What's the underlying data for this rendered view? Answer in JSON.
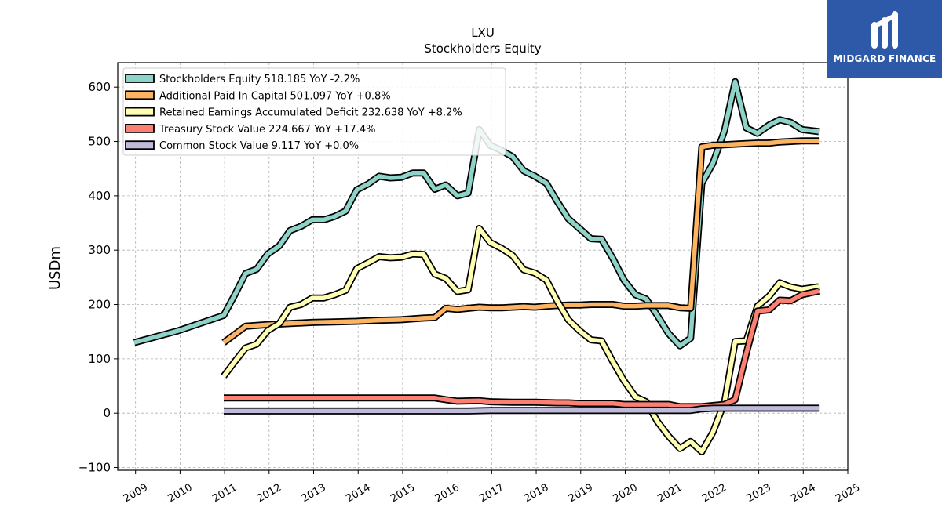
{
  "brand": {
    "name": "MIDGARD FINANCE",
    "color": "#2e59a8"
  },
  "chart_data": {
    "type": "line",
    "title": "LXU",
    "subtitle": "Stockholders  Equity",
    "ylabel": "USDm",
    "xlabel": "",
    "xlim": [
      2008.6,
      2025.0
    ],
    "ylim": [
      -105,
      645
    ],
    "x_ticks": [
      "2009",
      "2010",
      "2011",
      "2012",
      "2013",
      "2014",
      "2015",
      "2016",
      "2017",
      "2018",
      "2019",
      "2020",
      "2021",
      "2022",
      "2023",
      "2024",
      "2025"
    ],
    "y_ticks": [
      -100,
      0,
      100,
      200,
      300,
      400,
      500,
      600
    ],
    "y_tick_labels": [
      "−100",
      "0",
      "100",
      "200",
      "300",
      "400",
      "500",
      "600"
    ],
    "grid": true,
    "legend_position": "top-left",
    "series": [
      {
        "name": "Stockholders Equity",
        "legend": "Stockholders Equity  518.185 YoY -2.2%",
        "color": "#8dd3c7",
        "points": [
          [
            2008.97,
            130
          ],
          [
            2009.97,
            152
          ],
          [
            2010.98,
            180
          ],
          [
            2011.23,
            218
          ],
          [
            2011.47,
            257
          ],
          [
            2011.72,
            265
          ],
          [
            2011.97,
            293
          ],
          [
            2012.23,
            308
          ],
          [
            2012.47,
            336
          ],
          [
            2012.72,
            344
          ],
          [
            2012.97,
            356
          ],
          [
            2013.23,
            356
          ],
          [
            2013.47,
            362
          ],
          [
            2013.72,
            372
          ],
          [
            2013.97,
            411
          ],
          [
            2014.23,
            422
          ],
          [
            2014.47,
            436
          ],
          [
            2014.72,
            433
          ],
          [
            2014.97,
            434
          ],
          [
            2015.23,
            442
          ],
          [
            2015.47,
            442
          ],
          [
            2015.72,
            412
          ],
          [
            2015.97,
            420
          ],
          [
            2016.23,
            400
          ],
          [
            2016.47,
            405
          ],
          [
            2016.72,
            522
          ],
          [
            2016.97,
            493
          ],
          [
            2017.23,
            483
          ],
          [
            2017.47,
            472
          ],
          [
            2017.72,
            446
          ],
          [
            2017.97,
            436
          ],
          [
            2018.23,
            423
          ],
          [
            2018.47,
            390
          ],
          [
            2018.72,
            358
          ],
          [
            2018.97,
            340
          ],
          [
            2019.23,
            321
          ],
          [
            2019.47,
            320
          ],
          [
            2019.72,
            285
          ],
          [
            2019.97,
            245
          ],
          [
            2020.23,
            218
          ],
          [
            2020.47,
            210
          ],
          [
            2020.72,
            180
          ],
          [
            2020.97,
            147
          ],
          [
            2021.23,
            124
          ],
          [
            2021.47,
            138
          ],
          [
            2021.72,
            423
          ],
          [
            2021.97,
            460
          ],
          [
            2022.23,
            520
          ],
          [
            2022.47,
            610
          ],
          [
            2022.72,
            525
          ],
          [
            2022.97,
            515
          ],
          [
            2023.23,
            530
          ],
          [
            2023.47,
            540
          ],
          [
            2023.72,
            535
          ],
          [
            2023.97,
            522
          ],
          [
            2024.35,
            518.185
          ]
        ]
      },
      {
        "name": "Additional Paid In Capital",
        "legend": "Additional Paid In Capital  501.097 YoY +0.8%",
        "color": "#fdb462",
        "points": [
          [
            2010.98,
            130
          ],
          [
            2011.47,
            160
          ],
          [
            2011.97,
            163
          ],
          [
            2012.47,
            165
          ],
          [
            2012.97,
            167
          ],
          [
            2013.47,
            168
          ],
          [
            2013.97,
            169
          ],
          [
            2014.47,
            171
          ],
          [
            2014.97,
            172
          ],
          [
            2015.47,
            175
          ],
          [
            2015.72,
            176
          ],
          [
            2015.97,
            193
          ],
          [
            2016.23,
            191
          ],
          [
            2016.47,
            193
          ],
          [
            2016.72,
            195
          ],
          [
            2016.97,
            194
          ],
          [
            2017.23,
            194
          ],
          [
            2017.47,
            195
          ],
          [
            2017.72,
            196
          ],
          [
            2017.97,
            195
          ],
          [
            2018.23,
            197
          ],
          [
            2018.47,
            198
          ],
          [
            2018.72,
            199
          ],
          [
            2018.97,
            199
          ],
          [
            2019.23,
            200
          ],
          [
            2019.47,
            200
          ],
          [
            2019.72,
            200
          ],
          [
            2019.97,
            197
          ],
          [
            2020.23,
            197
          ],
          [
            2020.47,
            198
          ],
          [
            2020.72,
            198
          ],
          [
            2020.97,
            198
          ],
          [
            2021.23,
            194
          ],
          [
            2021.47,
            193
          ],
          [
            2021.72,
            490
          ],
          [
            2021.97,
            493
          ],
          [
            2022.23,
            494
          ],
          [
            2022.47,
            495
          ],
          [
            2022.72,
            496
          ],
          [
            2022.97,
            497
          ],
          [
            2023.23,
            497
          ],
          [
            2023.47,
            499
          ],
          [
            2023.72,
            500
          ],
          [
            2023.97,
            501
          ],
          [
            2024.35,
            501.097
          ]
        ]
      },
      {
        "name": "Retained Earnings Accumulated Deficit",
        "legend": "Retained Earnings Accumulated Deficit  232.638 YoY +8.2%",
        "color": "#ffffb3",
        "points": [
          [
            2010.98,
            68
          ],
          [
            2011.23,
            95
          ],
          [
            2011.47,
            120
          ],
          [
            2011.72,
            127
          ],
          [
            2011.97,
            152
          ],
          [
            2012.23,
            165
          ],
          [
            2012.47,
            195
          ],
          [
            2012.72,
            200
          ],
          [
            2012.97,
            212
          ],
          [
            2013.23,
            212
          ],
          [
            2013.47,
            218
          ],
          [
            2013.72,
            226
          ],
          [
            2013.97,
            266
          ],
          [
            2014.23,
            277
          ],
          [
            2014.47,
            288
          ],
          [
            2014.72,
            286
          ],
          [
            2014.97,
            287
          ],
          [
            2015.23,
            293
          ],
          [
            2015.47,
            292
          ],
          [
            2015.72,
            256
          ],
          [
            2015.97,
            248
          ],
          [
            2016.23,
            224
          ],
          [
            2016.47,
            227
          ],
          [
            2016.72,
            340
          ],
          [
            2016.97,
            314
          ],
          [
            2017.23,
            303
          ],
          [
            2017.47,
            290
          ],
          [
            2017.72,
            264
          ],
          [
            2017.97,
            258
          ],
          [
            2018.23,
            245
          ],
          [
            2018.47,
            207
          ],
          [
            2018.72,
            172
          ],
          [
            2018.97,
            152
          ],
          [
            2019.23,
            135
          ],
          [
            2019.47,
            133
          ],
          [
            2019.72,
            95
          ],
          [
            2019.97,
            60
          ],
          [
            2020.23,
            30
          ],
          [
            2020.47,
            21
          ],
          [
            2020.72,
            -15
          ],
          [
            2020.97,
            -42
          ],
          [
            2021.23,
            -65
          ],
          [
            2021.47,
            -52
          ],
          [
            2021.72,
            -71
          ],
          [
            2021.97,
            -35
          ],
          [
            2022.23,
            20
          ],
          [
            2022.47,
            132
          ],
          [
            2022.72,
            133
          ],
          [
            2022.97,
            197
          ],
          [
            2023.23,
            215
          ],
          [
            2023.47,
            240
          ],
          [
            2023.72,
            232
          ],
          [
            2023.97,
            228
          ],
          [
            2024.35,
            232.638
          ]
        ]
      },
      {
        "name": "Treasury Stock Value",
        "legend": "Treasury Stock Value  224.667 YoY +17.4%",
        "color": "#fb8072",
        "points": [
          [
            2010.98,
            28
          ],
          [
            2011.47,
            28
          ],
          [
            2012.47,
            28
          ],
          [
            2013.47,
            28
          ],
          [
            2014.47,
            28
          ],
          [
            2015.47,
            28
          ],
          [
            2015.72,
            28
          ],
          [
            2015.97,
            25
          ],
          [
            2016.23,
            22
          ],
          [
            2016.72,
            23
          ],
          [
            2016.97,
            21
          ],
          [
            2017.47,
            20
          ],
          [
            2017.97,
            20
          ],
          [
            2018.47,
            19
          ],
          [
            2018.72,
            19
          ],
          [
            2018.97,
            18
          ],
          [
            2019.47,
            18
          ],
          [
            2019.72,
            18
          ],
          [
            2019.97,
            16
          ],
          [
            2020.47,
            16
          ],
          [
            2020.97,
            16
          ],
          [
            2021.23,
            12
          ],
          [
            2021.47,
            12
          ],
          [
            2021.72,
            12
          ],
          [
            2021.97,
            14
          ],
          [
            2022.23,
            16
          ],
          [
            2022.47,
            25
          ],
          [
            2022.72,
            110
          ],
          [
            2022.97,
            188
          ],
          [
            2023.23,
            190
          ],
          [
            2023.47,
            208
          ],
          [
            2023.72,
            207
          ],
          [
            2023.97,
            218
          ],
          [
            2024.35,
            224.667
          ]
        ]
      },
      {
        "name": "Common Stock Value",
        "legend": "Common Stock Value  9.117 YoY +0.0%",
        "color": "#bebada",
        "points": [
          [
            2010.98,
            4
          ],
          [
            2012.47,
            4
          ],
          [
            2013.97,
            4
          ],
          [
            2015.47,
            4
          ],
          [
            2016.47,
            4
          ],
          [
            2016.97,
            5
          ],
          [
            2018.47,
            5
          ],
          [
            2019.97,
            5
          ],
          [
            2021.47,
            5
          ],
          [
            2021.72,
            8
          ],
          [
            2021.97,
            9
          ],
          [
            2022.47,
            9.117
          ],
          [
            2023.47,
            9.117
          ],
          [
            2024.35,
            9.117
          ]
        ]
      }
    ]
  }
}
